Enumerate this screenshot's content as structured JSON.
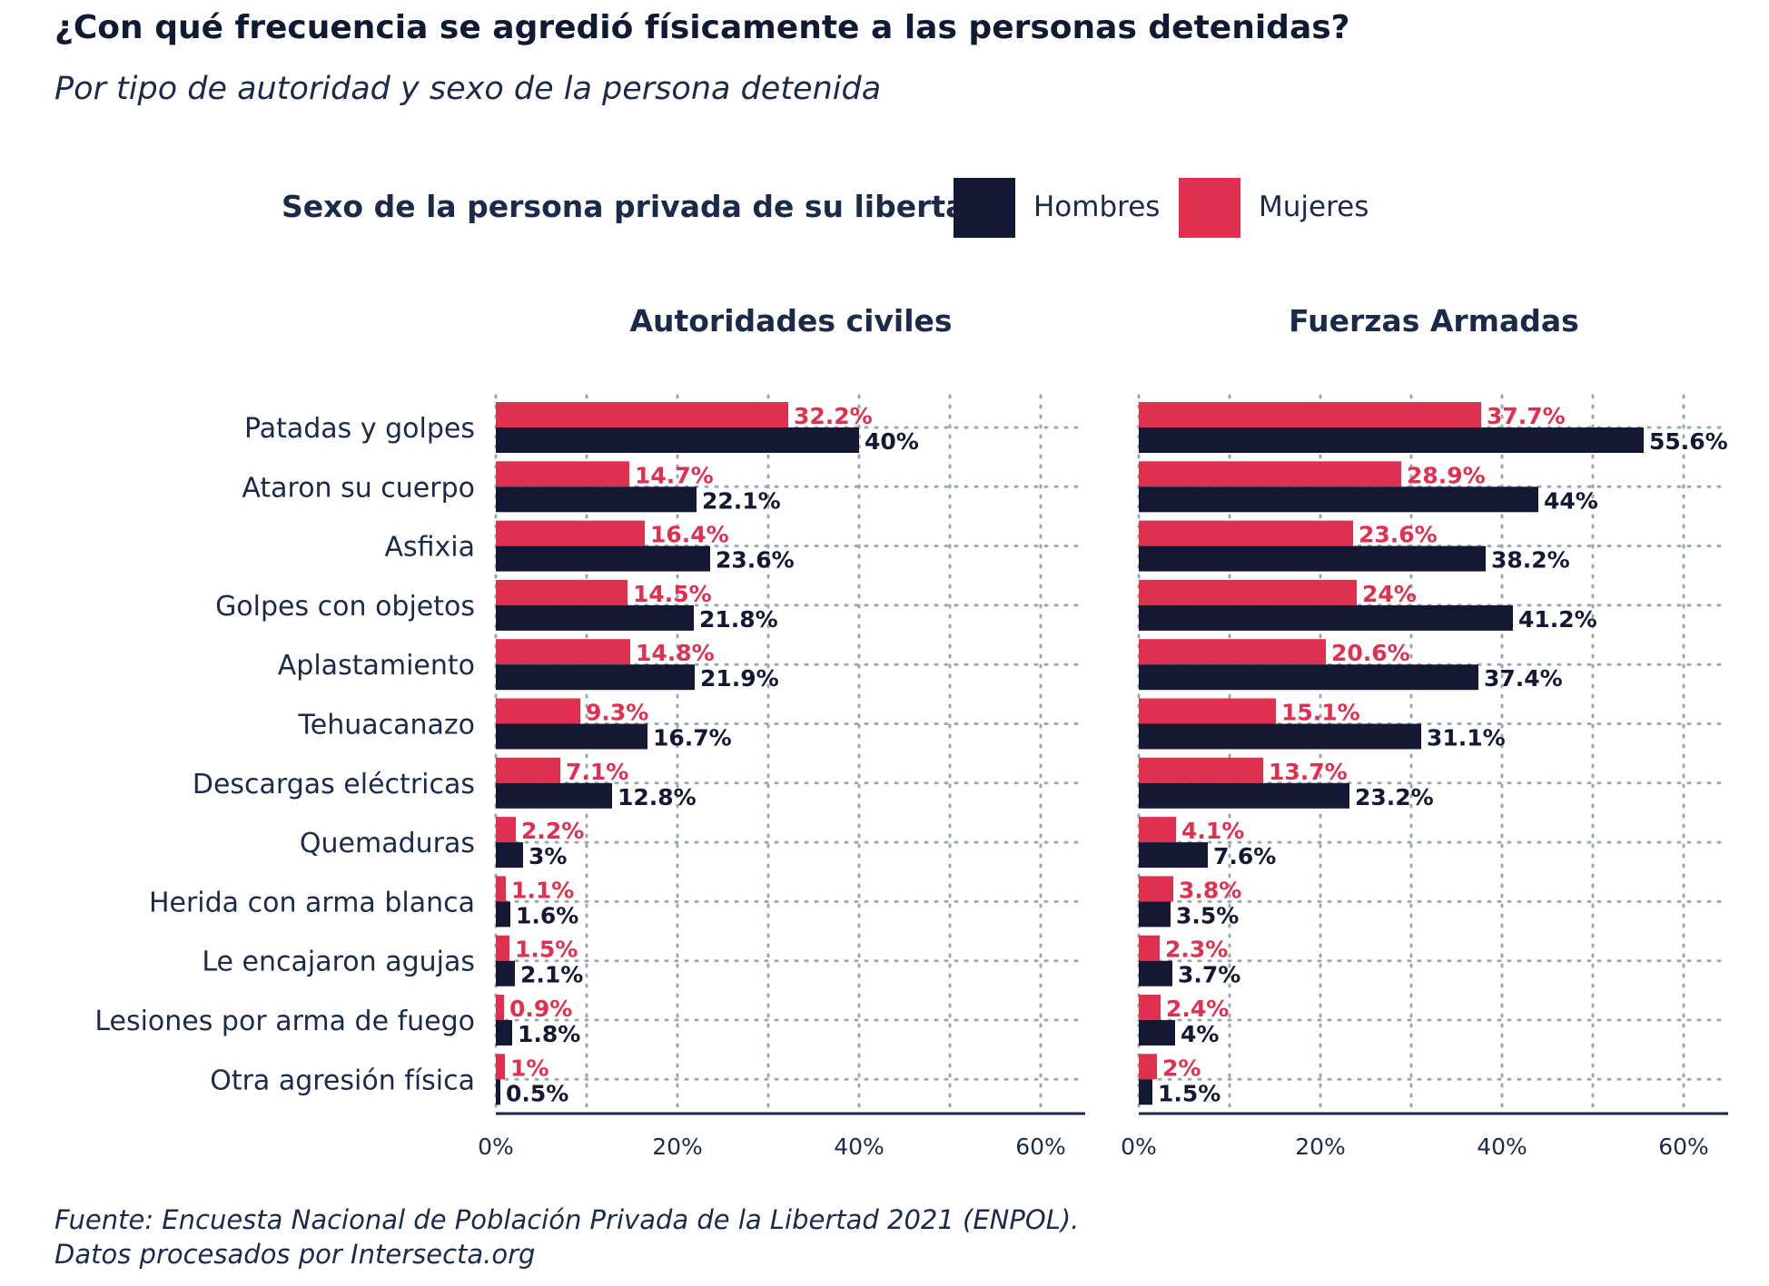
{
  "title": "¿Con qué frecuencia se agredió físicamente a las personas detenidas?",
  "subtitle": "Por tipo de autoridad y sexo de la persona detenida",
  "legend": {
    "title": "Sexo de la persona privada de su libertad",
    "items": [
      {
        "name": "Hombres",
        "color": "#141833"
      },
      {
        "name": "Mujeres",
        "color": "#e0304f"
      }
    ]
  },
  "footer": {
    "line1": "Fuente: Encuesta Nacional de Población Privada de la Libertad 2021 (ENPOL).",
    "line2": "Datos procesados por Intersecta.org"
  },
  "chart_data": [
    {
      "type": "bar",
      "orientation": "horizontal",
      "title": "Autoridades civiles",
      "categories": [
        "Patadas y golpes",
        "Ataron su cuerpo",
        "Asfixia",
        "Golpes con objetos",
        "Aplastamiento",
        "Tehuacanazo",
        "Descargas eléctricas",
        "Quemaduras",
        "Herida con arma blanca",
        "Le encajaron agujas",
        "Lesiones por arma de fuego",
        "Otra agresión física"
      ],
      "series": [
        {
          "name": "Mujeres",
          "values": [
            32.2,
            14.7,
            16.4,
            14.5,
            14.8,
            9.3,
            7.1,
            2.2,
            1.1,
            1.5,
            0.9,
            1
          ],
          "labels": [
            "32.2%",
            "14.7%",
            "16.4%",
            "14.5%",
            "14.8%",
            "9.3%",
            "7.1%",
            "2.2%",
            "1.1%",
            "1.5%",
            "0.9%",
            "1%"
          ]
        },
        {
          "name": "Hombres",
          "values": [
            40,
            22.1,
            23.6,
            21.8,
            21.9,
            16.7,
            12.8,
            3,
            1.6,
            2.1,
            1.8,
            0.5
          ],
          "labels": [
            "40%",
            "22.1%",
            "23.6%",
            "21.8%",
            "21.9%",
            "16.7%",
            "12.8%",
            "3%",
            "1.6%",
            "2.1%",
            "1.8%",
            "0.5%"
          ]
        }
      ],
      "xlim": [
        0,
        65
      ],
      "xticks": [
        "0%",
        "20%",
        "40%",
        "60%"
      ],
      "grid": true
    },
    {
      "type": "bar",
      "orientation": "horizontal",
      "title": "Fuerzas Armadas",
      "categories": [
        "Patadas y golpes",
        "Ataron su cuerpo",
        "Asfixia",
        "Golpes con objetos",
        "Aplastamiento",
        "Tehuacanazo",
        "Descargas eléctricas",
        "Quemaduras",
        "Herida con arma blanca",
        "Le encajaron agujas",
        "Lesiones por arma de fuego",
        "Otra agresión física"
      ],
      "series": [
        {
          "name": "Mujeres",
          "values": [
            37.7,
            28.9,
            23.6,
            24,
            20.6,
            15.1,
            13.7,
            4.1,
            3.8,
            2.3,
            2.4,
            2
          ],
          "labels": [
            "37.7%",
            "28.9%",
            "23.6%",
            "24%",
            "20.6%",
            "15.1%",
            "13.7%",
            "4.1%",
            "3.8%",
            "2.3%",
            "2.4%",
            "2%"
          ]
        },
        {
          "name": "Hombres",
          "values": [
            55.6,
            44,
            38.2,
            41.2,
            37.4,
            31.1,
            23.2,
            7.6,
            3.5,
            3.7,
            4,
            1.5
          ],
          "labels": [
            "55.6%",
            "44%",
            "38.2%",
            "41.2%",
            "37.4%",
            "31.1%",
            "23.2%",
            "7.6%",
            "3.5%",
            "3.7%",
            "4%",
            "1.5%"
          ]
        }
      ],
      "xlim": [
        0,
        65
      ],
      "xticks": [
        "0%",
        "20%",
        "40%",
        "60%"
      ],
      "grid": true
    }
  ]
}
